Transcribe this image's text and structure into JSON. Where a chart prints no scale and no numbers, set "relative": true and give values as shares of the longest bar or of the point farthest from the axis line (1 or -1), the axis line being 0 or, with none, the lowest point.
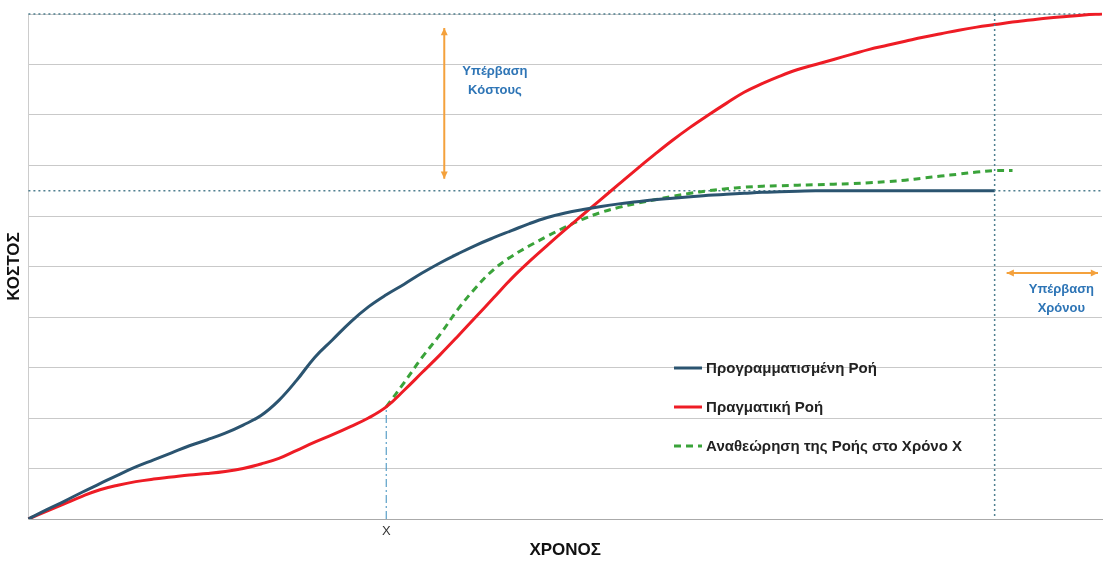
{
  "chart_data": {
    "type": "line",
    "relative": true,
    "xlabel": "ΧΡΟΝΟΣ",
    "ylabel": "ΚΟΣΤΟΣ",
    "categories": [
      null,
      null,
      null,
      null,
      null,
      null,
      null,
      null,
      null,
      null,
      null,
      null,
      null,
      null,
      null,
      null,
      null,
      null,
      null,
      null,
      null,
      null,
      null,
      null,
      null,
      null,
      null,
      null,
      null,
      null,
      null,
      null,
      null,
      null,
      null,
      null,
      null,
      null,
      null,
      null,
      null,
      null,
      null,
      null,
      null,
      null,
      null,
      null,
      null,
      null,
      null,
      null,
      null,
      null,
      null,
      null,
      null,
      null,
      null,
      null,
      null
    ],
    "grid": "y",
    "legend": "bottom right",
    "series": [
      {
        "name": "Προγραμματισμένη Ροή",
        "color": "#2b5470",
        "values": [
          0,
          0.018,
          0.035,
          0.053,
          0.07,
          0.087,
          0.103,
          0.117,
          0.131,
          0.145,
          0.157,
          0.17,
          0.186,
          0.205,
          0.235,
          0.275,
          0.32,
          0.355,
          0.39,
          0.42,
          0.444,
          0.465,
          0.487,
          0.507,
          0.525,
          0.542,
          0.557,
          0.571,
          0.585,
          0.597,
          0.606,
          0.613,
          0.619,
          0.624,
          0.628,
          0.632,
          0.635,
          0.638,
          0.641,
          0.643,
          0.645,
          0.647,
          0.648,
          0.649,
          0.65,
          0.65,
          0.65,
          0.65,
          0.65,
          0.65,
          0.65,
          0.65,
          0.65,
          0.65,
          0.65,
          null,
          null,
          null,
          null,
          null,
          null
        ]
      },
      {
        "name": "Πραγματική Ροή",
        "color": "#ee1c25",
        "values": [
          0,
          0.015,
          0.03,
          0.045,
          0.058,
          0.067,
          0.074,
          0.079,
          0.083,
          0.087,
          0.09,
          0.094,
          0.1,
          0.109,
          0.12,
          0.136,
          0.152,
          0.167,
          0.183,
          0.2,
          0.222,
          0.255,
          0.29,
          0.325,
          0.362,
          0.4,
          0.438,
          0.476,
          0.51,
          0.542,
          0.573,
          0.603,
          0.633,
          0.663,
          0.693,
          0.722,
          0.75,
          0.776,
          0.8,
          0.823,
          0.845,
          0.862,
          0.877,
          0.89,
          0.9,
          0.91,
          0.92,
          0.93,
          0.938,
          0.946,
          0.954,
          0.961,
          0.968,
          0.974,
          0.979,
          0.984,
          0.988,
          0.992,
          0.995,
          0.998,
          1
        ]
      },
      {
        "name": "Αναθεώρηση της Ροής στο Χρόνο X",
        "color": "#3aa33a",
        "line_style": "dashed",
        "values": [
          null,
          null,
          null,
          null,
          null,
          null,
          null,
          null,
          null,
          null,
          null,
          null,
          null,
          null,
          null,
          null,
          null,
          null,
          null,
          null,
          0.222,
          0.27,
          0.32,
          0.365,
          0.415,
          0.458,
          0.494,
          0.52,
          0.541,
          0.56,
          0.578,
          0.594,
          0.607,
          0.617,
          0.625,
          0.632,
          0.639,
          0.645,
          0.65,
          0.654,
          0.657,
          0.659,
          0.66,
          0.661,
          0.662,
          0.663,
          0.664,
          0.666,
          0.668,
          0.671,
          0.675,
          0.679,
          0.683,
          0.687,
          0.69,
          0.69,
          null,
          null,
          null,
          null,
          null
        ]
      }
    ],
    "ref_lines": [
      {
        "axis": "y",
        "value": 1,
        "color": "#4f7f8f",
        "line_style": "dotted"
      },
      {
        "axis": "y",
        "value": 0.65,
        "color": "#4f7f8f",
        "line_style": "dotted"
      }
    ],
    "annotations": [
      "X",
      "Υπέρβαση\nΚόστους",
      "Υπέρβαση\nΧρόνου"
    ]
  }
}
